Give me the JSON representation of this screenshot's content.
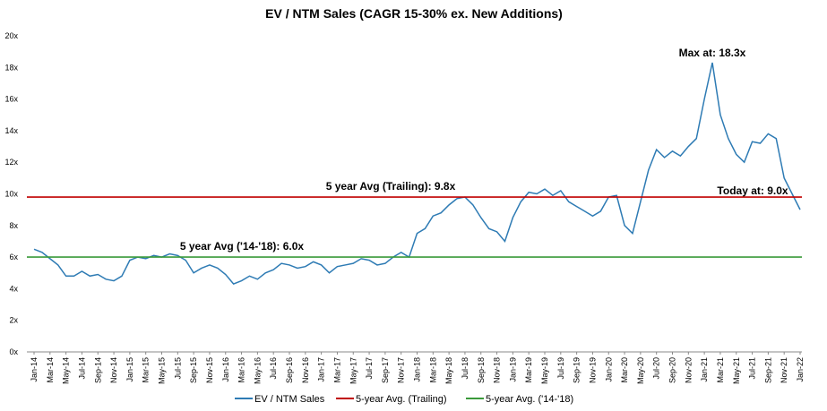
{
  "chart_data": {
    "type": "line",
    "title": "EV / NTM Sales (CAGR 15-30% ex. New Additions)",
    "categories": [
      "Jan-14",
      null,
      "Mar-14",
      null,
      "May-14",
      null,
      "Jul-14",
      null,
      "Sep-14",
      null,
      "Nov-14",
      null,
      "Jan-15",
      null,
      "Mar-15",
      null,
      "May-15",
      null,
      "Jul-15",
      null,
      "Sep-15",
      null,
      "Nov-15",
      null,
      "Jan-16",
      null,
      "Mar-16",
      null,
      "May-16",
      null,
      "Jul-16",
      null,
      "Sep-16",
      null,
      "Nov-16",
      null,
      "Jan-17",
      null,
      "Mar-17",
      null,
      "May-17",
      null,
      "Jul-17",
      null,
      "Sep-17",
      null,
      "Nov-17",
      null,
      "Jan-18",
      null,
      "Mar-18",
      null,
      "May-18",
      null,
      "Jul-18",
      null,
      "Sep-18",
      null,
      "Nov-18",
      null,
      "Jan-19",
      null,
      "Mar-19",
      null,
      "May-19",
      null,
      "Jul-19",
      null,
      "Sep-19",
      null,
      "Nov-19",
      null,
      "Jan-20",
      null,
      "Mar-20",
      null,
      "May-20",
      null,
      "Jul-20",
      null,
      "Sep-20",
      null,
      "Nov-20",
      null,
      "Jan-21",
      null,
      "Mar-21",
      null,
      "May-21",
      null,
      "Jul-21",
      null,
      "Sep-21",
      null,
      "Nov-21",
      null,
      "Jan-22"
    ],
    "series": [
      {
        "name": "EV / NTM Sales",
        "color": "#2e7bb4",
        "values": [
          6.5,
          6.3,
          5.9,
          5.5,
          4.8,
          4.8,
          5.1,
          4.8,
          4.9,
          4.6,
          4.5,
          4.8,
          5.8,
          6.0,
          5.9,
          6.1,
          6.0,
          6.2,
          6.1,
          5.8,
          5.0,
          5.3,
          5.5,
          5.3,
          4.9,
          4.3,
          4.5,
          4.8,
          4.6,
          5.0,
          5.2,
          5.6,
          5.5,
          5.3,
          5.4,
          5.7,
          5.5,
          5.0,
          5.4,
          5.5,
          5.6,
          5.9,
          5.8,
          5.5,
          5.6,
          6.0,
          6.3,
          6.0,
          7.5,
          7.8,
          8.6,
          8.8,
          9.3,
          9.7,
          9.8,
          9.3,
          8.5,
          7.8,
          7.6,
          7.0,
          8.5,
          9.5,
          10.1,
          10.0,
          10.3,
          9.9,
          10.2,
          9.5,
          9.2,
          8.9,
          8.6,
          8.9,
          9.8,
          9.9,
          8.0,
          7.5,
          9.5,
          11.5,
          12.8,
          12.3,
          12.7,
          12.4,
          13.0,
          13.5,
          16.0,
          18.3,
          15.0,
          13.5,
          12.5,
          12.0,
          13.3,
          13.2,
          13.8,
          13.5,
          11.0,
          10.0,
          9.0
        ]
      },
      {
        "name": "5-year Avg. (Trailing)",
        "color": "#c00000",
        "value": 9.8
      },
      {
        "name": "5-year Avg. ('14-'18)",
        "color": "#3a9a3a",
        "value": 6.0
      }
    ],
    "annotations": [
      "Max at: 18.3x",
      "5 year Avg (Trailing): 9.8x",
      "5 year Avg ('14-'18): 6.0x",
      "Today at: 9.0x"
    ],
    "ylim": [
      0,
      20
    ],
    "yticks": [
      {
        "value": 0,
        "label": "0x"
      },
      {
        "value": 2,
        "label": "2x"
      },
      {
        "value": 4,
        "label": "4x"
      },
      {
        "value": 6,
        "label": "6x"
      },
      {
        "value": 8,
        "label": "8x"
      },
      {
        "value": 10,
        "label": "10x"
      },
      {
        "value": 12,
        "label": "12x"
      },
      {
        "value": 14,
        "label": "14x"
      },
      {
        "value": 16,
        "label": "16x"
      },
      {
        "value": 18,
        "label": "18x"
      },
      {
        "value": 20,
        "label": "20x"
      }
    ]
  }
}
